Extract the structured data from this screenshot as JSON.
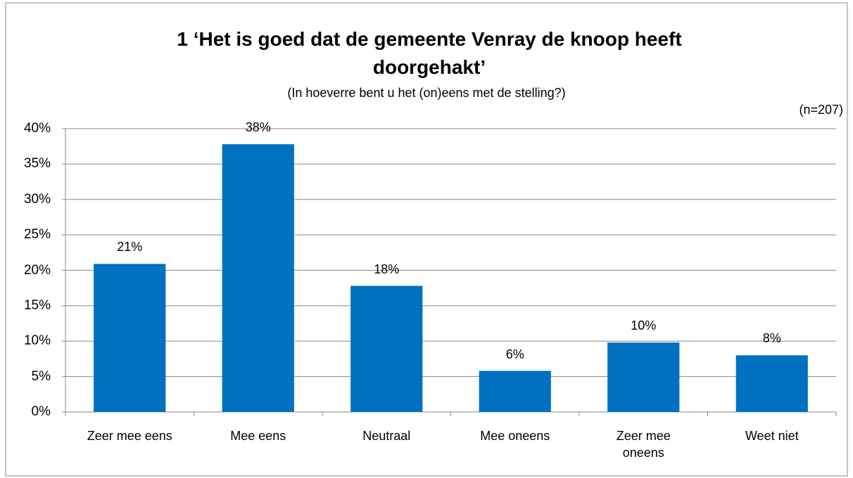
{
  "chart_data": {
    "type": "bar",
    "title": "1 ‘Het is goed dat de gemeente Venray de knoop heeft doorgehakt’",
    "subtitle": "(In hoeverre bent u het (on)eens met de stelling?)",
    "annotation": "(n=207)",
    "categories": [
      "Zeer mee eens",
      "Mee eens",
      "Neutraal",
      "Mee oneens",
      "Zeer mee oneens",
      "Weet niet"
    ],
    "values": [
      20.9,
      37.8,
      17.8,
      5.8,
      9.8,
      8.0
    ],
    "value_labels": [
      "21%",
      "38%",
      "18%",
      "6%",
      "10%",
      "8%"
    ],
    "color": "#0070c0",
    "ylim": [
      0,
      40
    ],
    "yticks": [
      {
        "value": 0,
        "label": "0%"
      },
      {
        "value": 5,
        "label": "5%"
      },
      {
        "value": 10,
        "label": "10%"
      },
      {
        "value": 15,
        "label": "15%"
      },
      {
        "value": 20,
        "label": "20%"
      },
      {
        "value": 25,
        "label": "25%"
      },
      {
        "value": 30,
        "label": "30%"
      },
      {
        "value": 35,
        "label": "35%"
      },
      {
        "value": 40,
        "label": "40%"
      }
    ],
    "grid": true
  }
}
